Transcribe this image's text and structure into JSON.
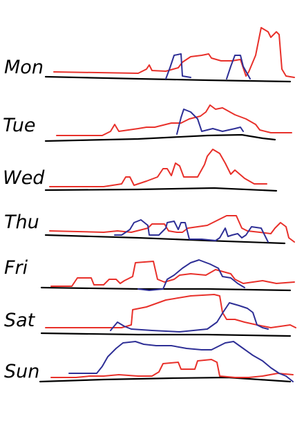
{
  "days": [
    {
      "label": "Mon"
    },
    {
      "label": "Tue"
    },
    {
      "label": "Wed"
    },
    {
      "label": "Thu"
    },
    {
      "label": "Fri"
    },
    {
      "label": "Sat"
    },
    {
      "label": "Sun"
    }
  ],
  "colors": {
    "red_series": "#e8302a",
    "blue_series": "#2e2f96",
    "baseline": "#000000"
  }
}
